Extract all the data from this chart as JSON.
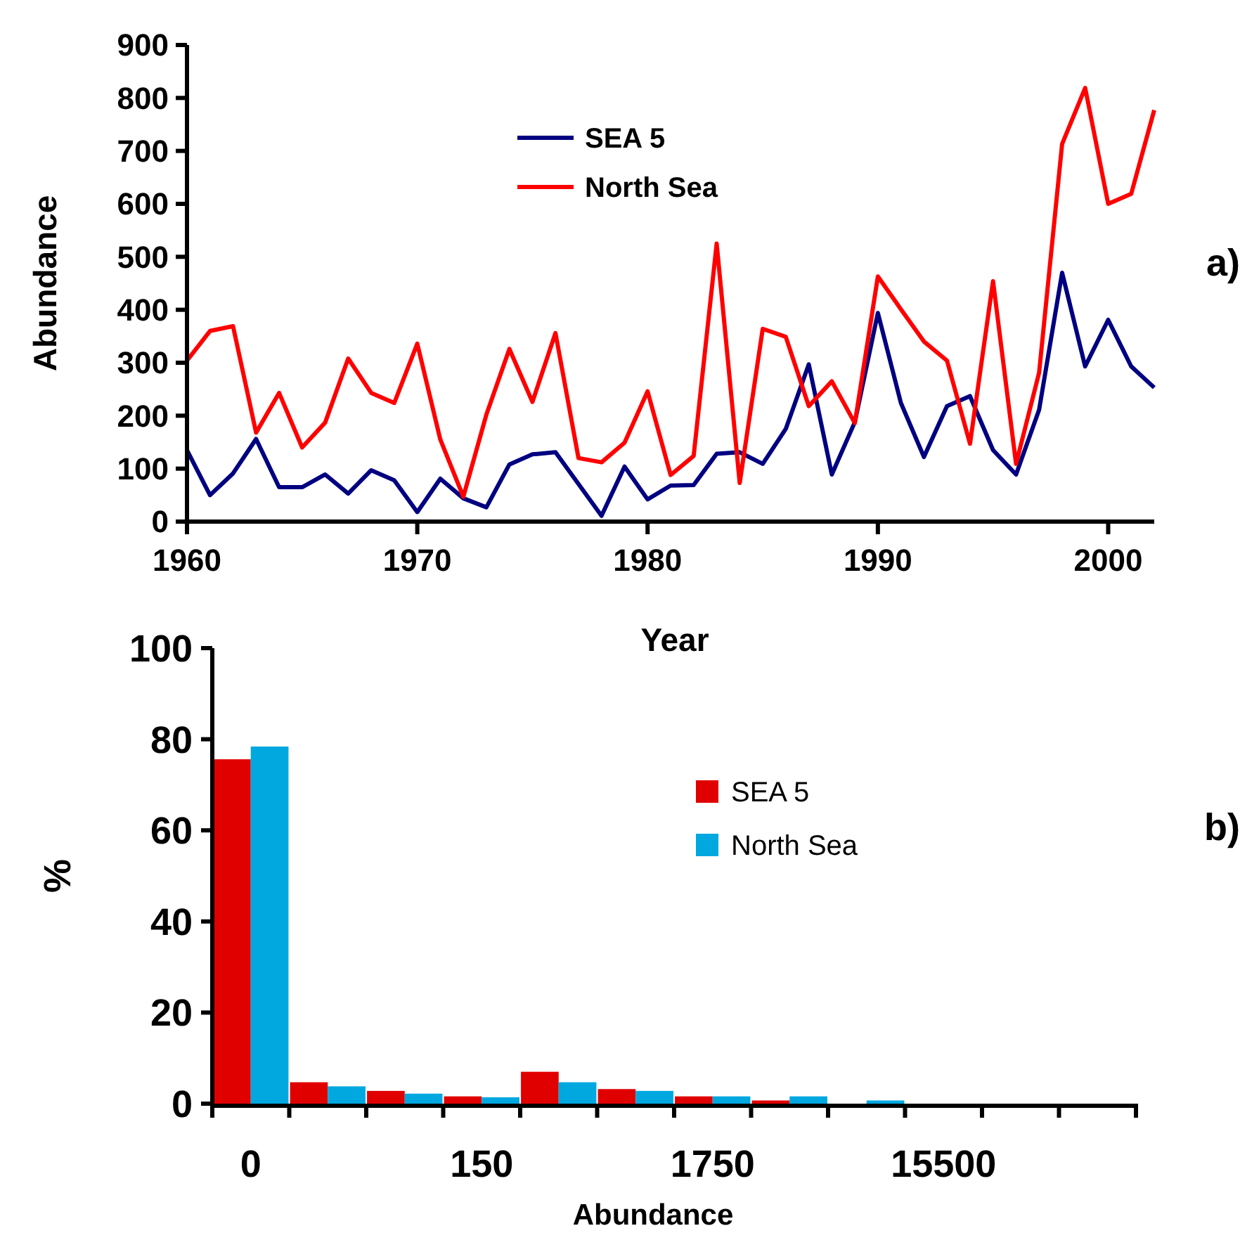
{
  "chart_data": [
    {
      "type": "line",
      "xlabel": "Year",
      "ylabel": "Abundance",
      "x": [
        1960,
        1961,
        1962,
        1963,
        1964,
        1965,
        1966,
        1967,
        1968,
        1969,
        1970,
        1971,
        1972,
        1973,
        1974,
        1975,
        1976,
        1977,
        1978,
        1979,
        1980,
        1981,
        1982,
        1983,
        1984,
        1985,
        1986,
        1987,
        1988,
        1989,
        1990,
        1991,
        1992,
        1993,
        1994,
        1995,
        1996,
        1997,
        1998,
        1999,
        2000,
        2001,
        2002
      ],
      "series": [
        {
          "name": "SEA 5",
          "color": "#000080",
          "values": [
            135,
            50,
            91,
            156,
            65,
            65,
            89,
            53,
            97,
            78,
            18,
            81,
            44,
            27,
            108,
            127,
            131,
            71,
            11,
            104,
            42,
            68,
            69,
            128,
            131,
            109,
            175,
            297,
            89,
            188,
            394,
            224,
            122,
            218,
            237,
            135,
            89,
            211,
            470,
            293,
            381,
            293,
            253
          ]
        },
        {
          "name": "North Sea",
          "color": "#ff0000",
          "values": [
            304,
            360,
            369,
            168,
            243,
            140,
            187,
            308,
            243,
            224,
            336,
            155,
            47,
            202,
            326,
            226,
            356,
            120,
            112,
            149,
            246,
            88,
            124,
            525,
            73,
            364,
            349,
            218,
            265,
            186,
            463,
            401,
            340,
            304,
            147,
            454,
            109,
            281,
            713,
            819,
            600,
            619,
            777
          ]
        }
      ],
      "xlim": [
        1960,
        2002
      ],
      "xticks": [
        1960,
        1970,
        1980,
        1990,
        2000
      ],
      "ylim": [
        0,
        900
      ],
      "yticks": [
        0,
        100,
        200,
        300,
        400,
        500,
        600,
        700,
        800,
        900
      ],
      "legend": "top",
      "grid": false,
      "marker": "none",
      "line_style": "solid",
      "annotations": [
        "a)"
      ]
    },
    {
      "type": "bar",
      "xlabel": "Abundance",
      "ylabel": "%",
      "categories": [
        "0",
        null,
        null,
        "150",
        null,
        null,
        "1750",
        null,
        null,
        "15500",
        null,
        null
      ],
      "series": [
        {
          "name": "SEA 5",
          "color": "#e00000",
          "values": [
            75.6,
            4.7,
            2.8,
            1.6,
            7.0,
            3.2,
            1.6,
            0.7,
            0,
            0,
            0,
            0
          ]
        },
        {
          "name": "North Sea",
          "color": "#00a8e0",
          "values": [
            78.4,
            3.8,
            2.2,
            1.4,
            4.7,
            2.8,
            1.6,
            1.6,
            0.7,
            0,
            0,
            0
          ]
        }
      ],
      "ylim": [
        0,
        100
      ],
      "yticks": [
        0,
        20,
        40,
        60,
        80,
        100
      ],
      "legend": "right",
      "grid": false,
      "annotations": [
        "b)"
      ]
    }
  ]
}
